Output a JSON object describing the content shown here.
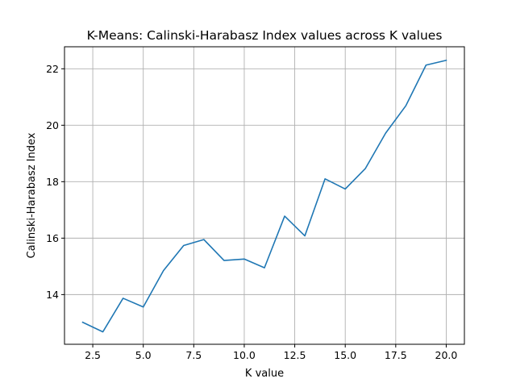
{
  "chart_data": {
    "type": "line",
    "title": "K-Means: Calinski-Harabasz Index values across K values",
    "xlabel": "K value",
    "ylabel": "Calinski-Harabasz Index",
    "xlim": [
      1.1,
      20.9
    ],
    "ylim": [
      12.24,
      22.78
    ],
    "xticks": [
      2.5,
      5.0,
      7.5,
      10.0,
      12.5,
      15.0,
      17.5,
      20.0
    ],
    "xtick_labels": [
      "2.5",
      "5.0",
      "7.5",
      "10.0",
      "12.5",
      "15.0",
      "17.5",
      "20.0"
    ],
    "yticks": [
      14,
      16,
      18,
      20,
      22
    ],
    "ytick_labels": [
      "14",
      "16",
      "18",
      "20",
      "22"
    ],
    "grid": true,
    "line_color": "#1f77b4",
    "series": [
      {
        "x": [
          2,
          3,
          4,
          5,
          6,
          7,
          8,
          9,
          10,
          11,
          12,
          13,
          14,
          15,
          16,
          17,
          18,
          19,
          20
        ],
        "values": [
          13.02,
          12.68,
          13.87,
          13.56,
          14.85,
          15.74,
          15.95,
          15.21,
          15.26,
          14.95,
          16.78,
          16.08,
          18.1,
          17.74,
          18.47,
          19.72,
          20.69,
          22.13,
          22.3
        ]
      }
    ]
  }
}
